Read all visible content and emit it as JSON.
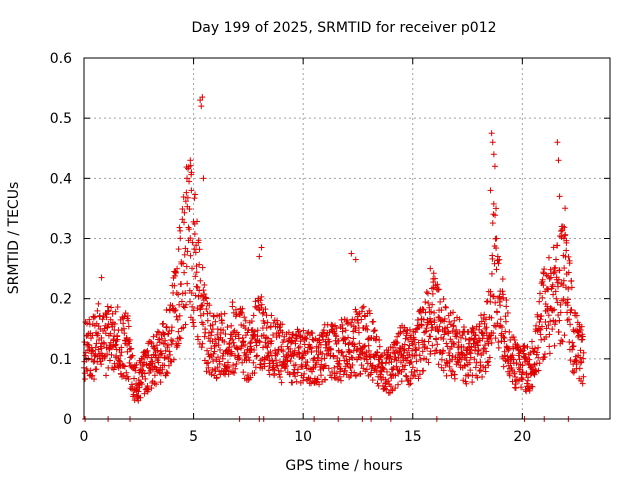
{
  "chart_data": {
    "type": "scatter",
    "title": "Day 199 of 2025, SRMTID for receiver p012",
    "xlabel": "GPS time / hours",
    "ylabel": "SRMTID / TECUs",
    "xlim": [
      0,
      24
    ],
    "ylim": [
      0,
      0.6
    ],
    "x_ticks": [
      0,
      5,
      10,
      15,
      20
    ],
    "x_tick_labels": [
      "0",
      "5",
      "10",
      "15",
      "20"
    ],
    "y_ticks": [
      0,
      0.1,
      0.2,
      0.3,
      0.4,
      0.5,
      0.6
    ],
    "y_tick_labels": [
      "0",
      "0.1",
      "0.2",
      "0.3",
      "0.4",
      "0.5",
      "0.6"
    ],
    "grid": true,
    "marker": "+",
    "color": "#e00000",
    "series": [
      {
        "name": "SRMTID",
        "points_per_hour": 90,
        "x_end": 22.8,
        "baseline_hours": [
          0,
          0.5,
          0.7,
          1.0,
          1.5,
          2.0,
          2.3,
          3.0,
          3.5,
          4.0,
          4.5,
          4.8,
          5.0,
          5.2,
          5.6,
          6.0,
          6.5,
          7.0,
          7.5,
          8.0,
          8.5,
          9.0,
          9.5,
          10.0,
          10.5,
          11.0,
          11.5,
          12.0,
          12.5,
          13.0,
          13.5,
          14.0,
          14.5,
          15.0,
          15.5,
          16.0,
          16.5,
          17.0,
          17.5,
          18.0,
          18.5,
          18.7,
          19.0,
          19.5,
          20.0,
          20.5,
          21.0,
          21.5,
          22.0,
          22.3,
          22.8
        ],
        "baseline_values": [
          0.12,
          0.12,
          0.14,
          0.13,
          0.13,
          0.12,
          0.05,
          0.09,
          0.11,
          0.15,
          0.25,
          0.32,
          0.28,
          0.22,
          0.14,
          0.12,
          0.13,
          0.14,
          0.11,
          0.15,
          0.12,
          0.11,
          0.1,
          0.11,
          0.1,
          0.11,
          0.11,
          0.12,
          0.13,
          0.13,
          0.09,
          0.08,
          0.11,
          0.1,
          0.14,
          0.18,
          0.13,
          0.12,
          0.1,
          0.11,
          0.15,
          0.25,
          0.18,
          0.1,
          0.08,
          0.09,
          0.18,
          0.2,
          0.25,
          0.14,
          0.1
        ],
        "spikes": [
          {
            "x": 0.8,
            "y": 0.235
          },
          {
            "x": 4.85,
            "y": 0.43
          },
          {
            "x": 4.7,
            "y": 0.4
          },
          {
            "x": 4.9,
            "y": 0.38
          },
          {
            "x": 5.3,
            "y": 0.53
          },
          {
            "x": 5.35,
            "y": 0.52
          },
          {
            "x": 5.4,
            "y": 0.535
          },
          {
            "x": 5.45,
            "y": 0.4
          },
          {
            "x": 8.1,
            "y": 0.285
          },
          {
            "x": 8.0,
            "y": 0.27
          },
          {
            "x": 12.2,
            "y": 0.275
          },
          {
            "x": 12.4,
            "y": 0.265
          },
          {
            "x": 15.8,
            "y": 0.25
          },
          {
            "x": 18.6,
            "y": 0.475
          },
          {
            "x": 18.65,
            "y": 0.46
          },
          {
            "x": 18.7,
            "y": 0.44
          },
          {
            "x": 18.75,
            "y": 0.42
          },
          {
            "x": 18.8,
            "y": 0.35
          },
          {
            "x": 18.55,
            "y": 0.38
          },
          {
            "x": 21.6,
            "y": 0.46
          },
          {
            "x": 21.65,
            "y": 0.43
          },
          {
            "x": 21.7,
            "y": 0.37
          },
          {
            "x": 21.8,
            "y": 0.32
          },
          {
            "x": 21.9,
            "y": 0.3
          },
          {
            "x": 22.0,
            "y": 0.28
          }
        ],
        "zero_markers_x": [
          0.05,
          1.1,
          2.1,
          7.1,
          8.0,
          8.2,
          10.5,
          11.6,
          12.7,
          13.1,
          14.0,
          16.1,
          20.1,
          21.0,
          22.1
        ]
      }
    ]
  }
}
